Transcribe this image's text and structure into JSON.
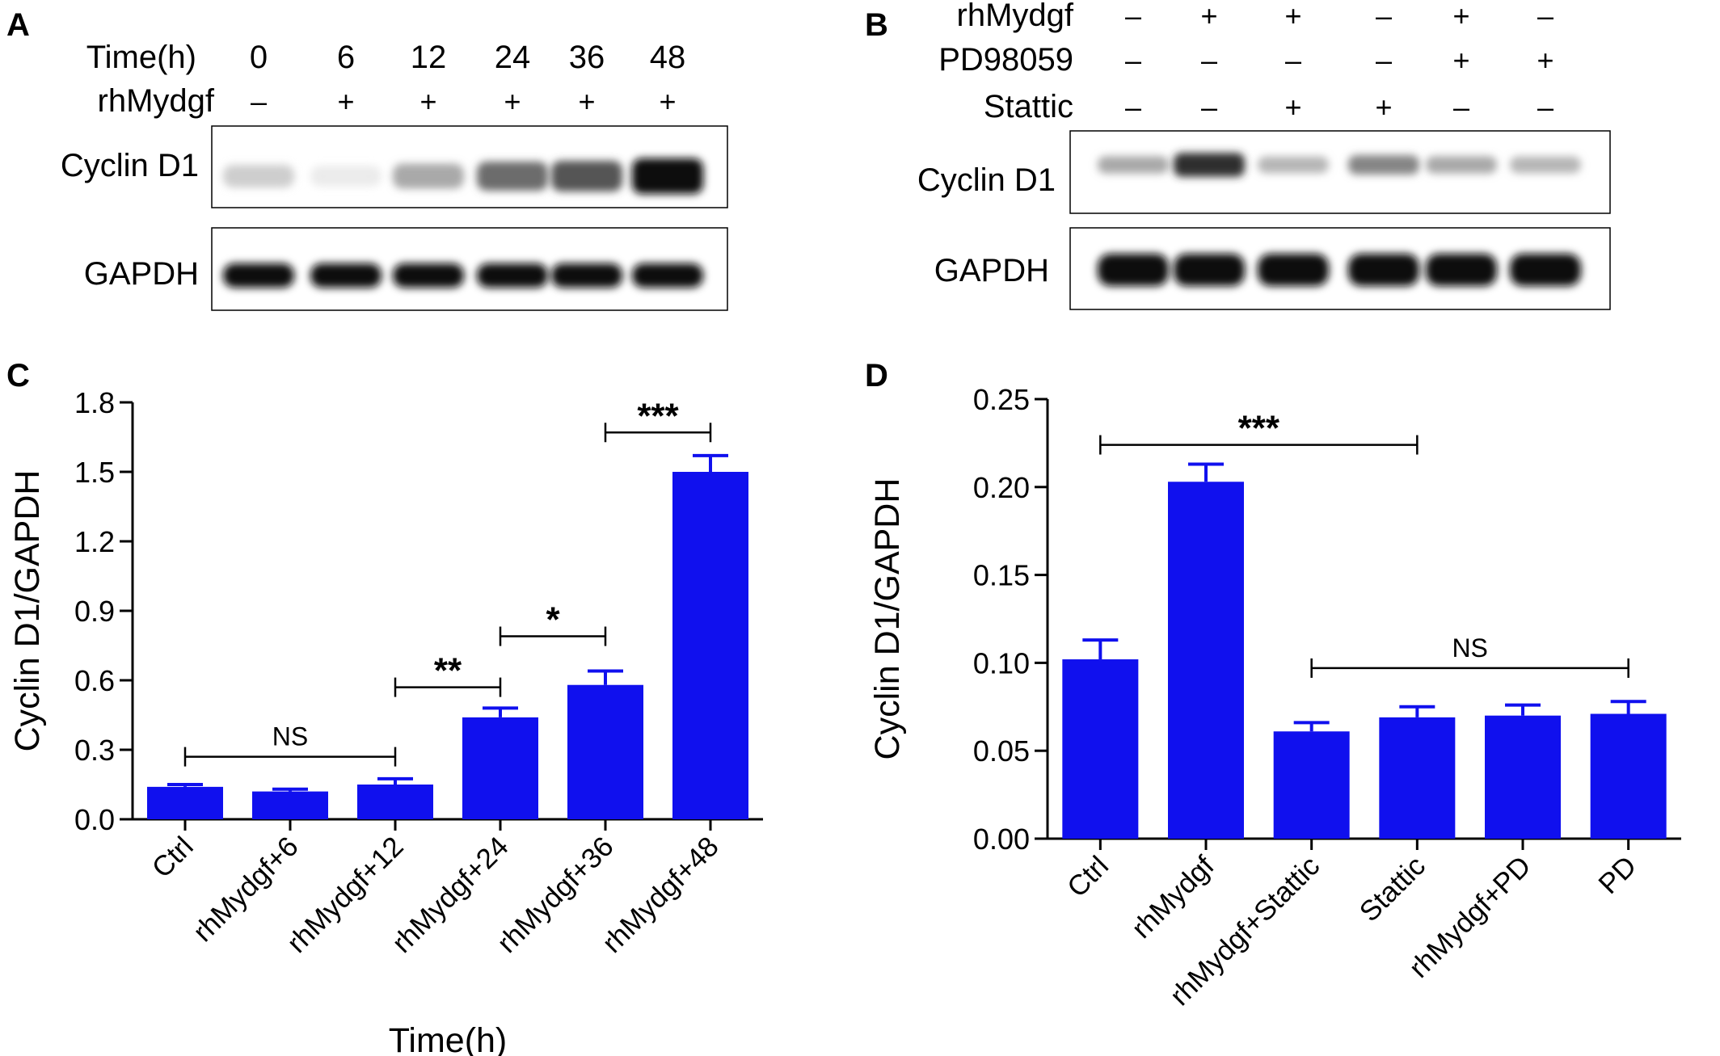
{
  "panels": {
    "a": "A",
    "b": "B",
    "c": "C",
    "d": "D"
  },
  "blot_a": {
    "row_labels": [
      "Time(h)",
      "rhMydgf"
    ],
    "lanes": [
      {
        "time": "0",
        "rhMydgf": "–"
      },
      {
        "time": "6",
        "rhMydgf": "+"
      },
      {
        "time": "12",
        "rhMydgf": "+"
      },
      {
        "time": "24",
        "rhMydgf": "+"
      },
      {
        "time": "36",
        "rhMydgf": "+"
      },
      {
        "time": "48",
        "rhMydgf": "+"
      }
    ],
    "band_labels": [
      "Cyclin D1",
      "GAPDH"
    ],
    "cyclin_intensity": [
      0.2,
      0.08,
      0.35,
      0.6,
      0.7,
      1.0
    ],
    "gapdh_intensity": [
      1,
      1,
      1,
      1,
      1,
      1
    ]
  },
  "blot_b": {
    "row_labels": [
      "rhMydgf",
      "PD98059",
      "Stattic"
    ],
    "lanes": [
      {
        "rhMydgf": "–",
        "PD98059": "–",
        "Stattic": "–"
      },
      {
        "rhMydgf": "+",
        "PD98059": "–",
        "Stattic": "–"
      },
      {
        "rhMydgf": "+",
        "PD98059": "–",
        "Stattic": "+"
      },
      {
        "rhMydgf": "–",
        "PD98059": "–",
        "Stattic": "+"
      },
      {
        "rhMydgf": "+",
        "PD98059": "+",
        "Stattic": "–"
      },
      {
        "rhMydgf": "–",
        "PD98059": "+",
        "Stattic": "–"
      }
    ],
    "band_labels": [
      "Cyclin D1",
      "GAPDH"
    ],
    "cyclin_intensity": [
      0.35,
      0.85,
      0.3,
      0.5,
      0.35,
      0.3
    ],
    "gapdh_intensity": [
      1,
      1,
      1,
      1,
      1,
      1
    ]
  },
  "chart_data": [
    {
      "type": "bar",
      "panel": "C",
      "categories": [
        "Ctrl",
        "rhMydgf+6",
        "rhMydgf+12",
        "rhMydgf+24",
        "rhMydgf+36",
        "rhMydgf+48"
      ],
      "values": [
        0.14,
        0.12,
        0.15,
        0.44,
        0.58,
        1.5
      ],
      "errors": [
        0.01,
        0.01,
        0.025,
        0.04,
        0.06,
        0.07
      ],
      "ylabel": "Cyclin D1/GAPDH",
      "xlabel": "Time(h)",
      "ylim": [
        0,
        1.8
      ],
      "yticks": [
        "0.0",
        "0.3",
        "0.6",
        "0.9",
        "1.2",
        "1.5",
        "1.8"
      ],
      "color": "#1010ee",
      "annotations": [
        {
          "text": "NS",
          "from": 0,
          "to": 2,
          "y": 0.27
        },
        {
          "text": "**",
          "from": 2,
          "to": 3,
          "y": 0.57
        },
        {
          "text": "*",
          "from": 3,
          "to": 4,
          "y": 0.79
        },
        {
          "text": "***",
          "from": 4,
          "to": 5,
          "y": 1.67
        }
      ]
    },
    {
      "type": "bar",
      "panel": "D",
      "categories": [
        "Ctrl",
        "rhMydgf",
        "rhMydgf+Stattic",
        "Stattic",
        "rhMydgf+PD",
        "PD"
      ],
      "values": [
        0.102,
        0.203,
        0.061,
        0.069,
        0.07,
        0.071
      ],
      "errors": [
        0.011,
        0.01,
        0.005,
        0.006,
        0.006,
        0.007
      ],
      "ylabel": "Cyclin D1/GAPDH",
      "xlabel": "",
      "ylim": [
        0,
        0.25
      ],
      "yticks": [
        "0.00",
        "0.05",
        "0.10",
        "0.15",
        "0.20",
        "0.25"
      ],
      "color": "#1010ee",
      "annotations": [
        {
          "text": "***",
          "from": 0,
          "to": 3,
          "y": 0.224
        },
        {
          "text": "NS",
          "from": 2,
          "to": 5,
          "y": 0.097
        }
      ]
    }
  ]
}
